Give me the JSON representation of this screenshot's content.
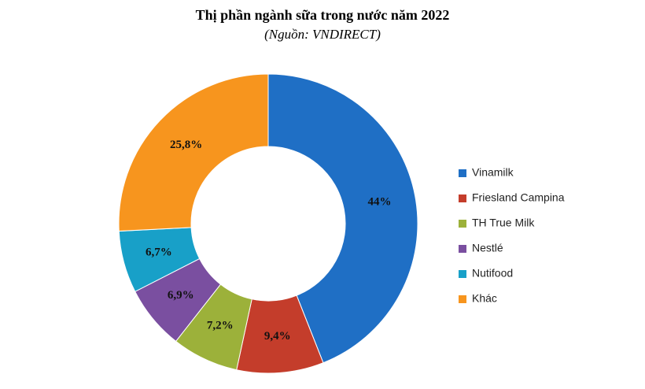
{
  "chart_data": {
    "type": "pie",
    "title": "Thị phần ngành sữa trong nước năm 2022",
    "subtitle": "(Nguồn: VNDIRECT)",
    "categories": [
      "Vinamilk",
      "Friesland Campina",
      "TH True Milk",
      "Nestlé",
      "Nutifood",
      "Khác"
    ],
    "values": [
      44,
      9.4,
      7.2,
      6.9,
      6.7,
      25.8
    ],
    "value_labels": [
      "44%",
      "9,4%",
      "7,2%",
      "6,9%",
      "6,7%",
      "25,8%"
    ],
    "colors": [
      "#1f6fc5",
      "#c43d2b",
      "#9cb13a",
      "#7a4fa0",
      "#18a0c8",
      "#f7951e"
    ],
    "legend": "right"
  }
}
